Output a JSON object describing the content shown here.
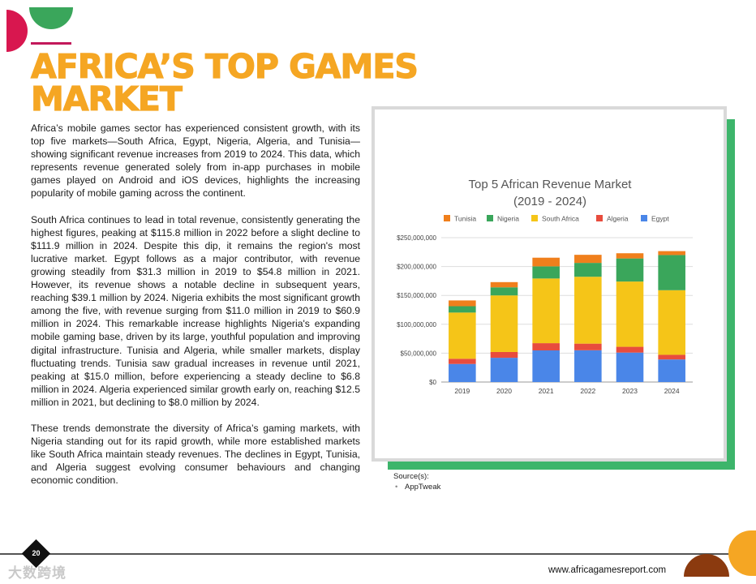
{
  "heading": "AFRICA’S TOP GAMES MARKET",
  "paragraphs": [
    "Africa’s mobile games sector has experienced consistent growth, with its top five markets—South Africa, Egypt, Nigeria, Algeria, and Tunisia—showing significant revenue increases from 2019 to 2024. This data, which represents revenue generated solely from in-app purchases in mobile games played on Android and iOS devices, highlights the increasing popularity of mobile gaming across the continent.",
    "South Africa continues to lead in total revenue, consistently generating the highest figures, peaking at $115.8 million in 2022 before a slight decline to $111.9 million in 2024. Despite this dip, it remains the region's most lucrative market. Egypt follows as a major contributor, with revenue growing steadily from $31.3 million in 2019 to $54.8 million in 2021. However, its revenue shows a notable decline in subsequent years, reaching $39.1 million by 2024. Nigeria exhibits the most significant growth among the five, with revenue surging from $11.0 million in 2019 to $60.9 million in 2024. This remarkable increase highlights Nigeria's expanding mobile gaming base, driven by its large, youthful population and improving digital infrastructure. Tunisia and Algeria, while smaller markets, display fluctuating trends. Tunisia saw gradual increases in revenue until 2021, peaking at $15.0 million, before experiencing a steady decline to $6.8 million in 2024. Algeria experienced similar growth early on, reaching $12.5 million in 2021,  but declining to $8.0 million by 2024.",
    "These trends demonstrate the diversity of Africa’s gaming markets, with Nigeria standing out for its rapid growth, while more established markets like South Africa maintain steady revenues. The declines in Egypt, Tunisia, and Algeria suggest evolving consumer behaviours and changing economic condition."
  ],
  "source": {
    "label": "Source(s):",
    "items": [
      "AppTweak"
    ]
  },
  "footer": {
    "page_number": "20",
    "website": "www.africagamesreport.com",
    "watermark": "大数跨境"
  },
  "colors": {
    "heading": "#f5a623",
    "accent_green": "#3db56b",
    "accent_pink": "#d8174f"
  },
  "chart_data": {
    "type": "bar",
    "stacked": true,
    "title": "Top 5 African Revenue Market",
    "subtitle": "(2019 - 2024)",
    "categories": [
      "2019",
      "2020",
      "2021",
      "2022",
      "2023",
      "2024"
    ],
    "ylim": [
      0,
      250000000
    ],
    "yticks": [
      0,
      50000000,
      100000000,
      150000000,
      200000000,
      250000000
    ],
    "ytick_labels": [
      "$0",
      "$50,000,000",
      "$100,000,000",
      "$150,000,000",
      "$200,000,000",
      "$250,000,000"
    ],
    "legend_position": "top",
    "legend_order": [
      "Tunisia",
      "Nigeria",
      "South Africa",
      "Algeria",
      "Egypt"
    ],
    "series": [
      {
        "name": "Egypt",
        "color": "#4a86e8",
        "values": [
          31300000,
          42000000,
          54800000,
          55000000,
          51000000,
          39100000
        ]
      },
      {
        "name": "Algeria",
        "color": "#e84c3d",
        "values": [
          9000000,
          10000000,
          12500000,
          11500000,
          10000000,
          8000000
        ]
      },
      {
        "name": "South Africa",
        "color": "#f5c518",
        "values": [
          80000000,
          98000000,
          112000000,
          115800000,
          113000000,
          111900000
        ]
      },
      {
        "name": "Nigeria",
        "color": "#3aa65b",
        "values": [
          11000000,
          14000000,
          21000000,
          24000000,
          40000000,
          60900000
        ]
      },
      {
        "name": "Tunisia",
        "color": "#f07f1c",
        "values": [
          10000000,
          9000000,
          15000000,
          14000000,
          9000000,
          6800000
        ]
      }
    ]
  }
}
